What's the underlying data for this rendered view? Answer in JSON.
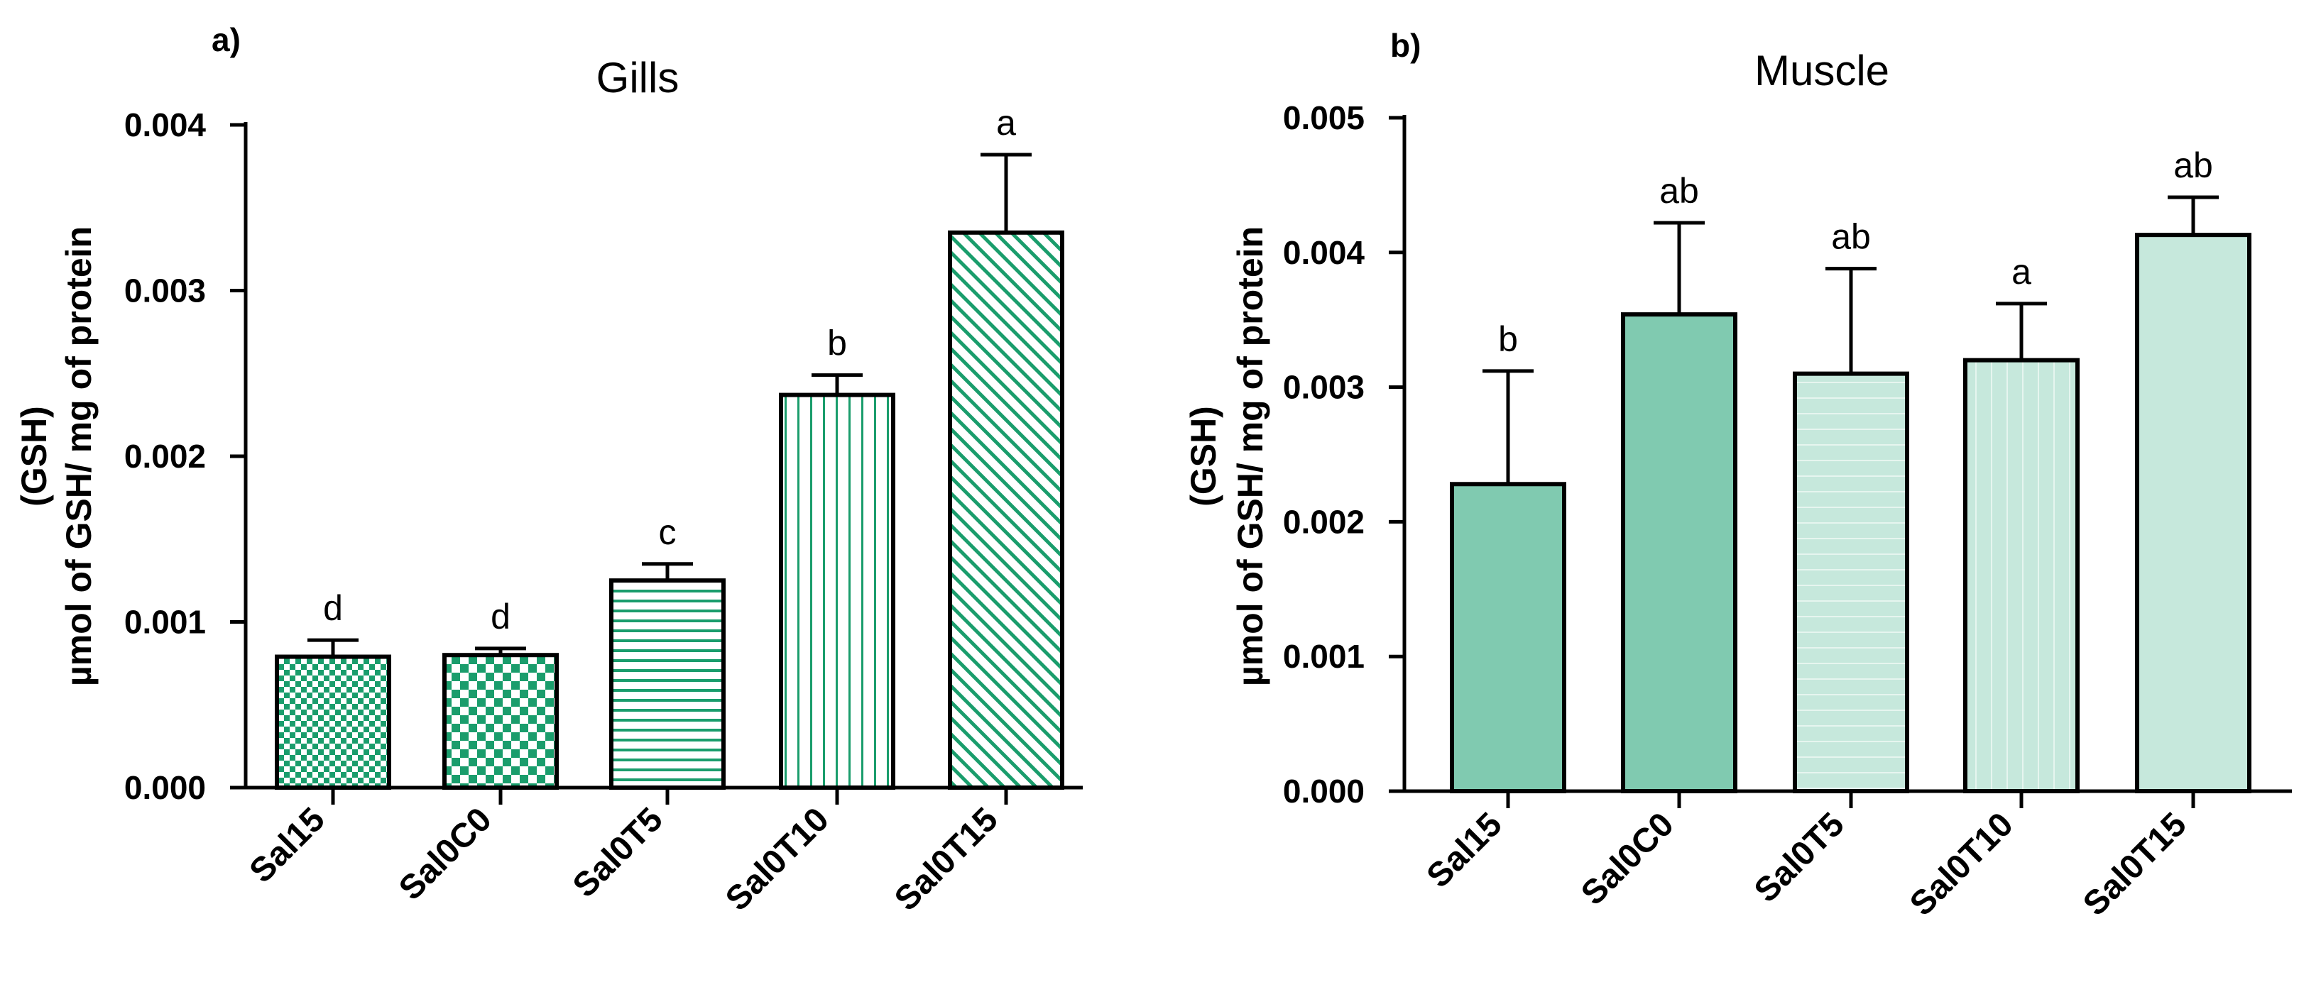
{
  "chart_data": [
    {
      "type": "bar",
      "panel_label": "a)",
      "title": "Gills",
      "ylabel_lines": [
        "(GSH)",
        "µmol of GSH/ mg of protein"
      ],
      "xlabel": "",
      "ylim": [
        0,
        0.004
      ],
      "yticks": [
        "0.000",
        "0.001",
        "0.002",
        "0.003",
        "0.004"
      ],
      "categories": [
        "Sal15",
        "Sal0C0",
        "Sal0T5",
        "Sal0T10",
        "Sal0T15"
      ],
      "values": [
        0.00079,
        0.0008,
        0.00125,
        0.00237,
        0.00335
      ],
      "errors": [
        0.0001,
        4e-05,
        0.0001,
        0.00012,
        0.00047
      ],
      "sig_letters": [
        "d",
        "d",
        "c",
        "b",
        "a"
      ],
      "patterns": [
        "checker-fine",
        "checker-coarse",
        "hlines",
        "vlines",
        "diagonal"
      ],
      "colors": {
        "pattern": "#1a9d6c",
        "fill": "#ffffff"
      }
    },
    {
      "type": "bar",
      "panel_label": "b)",
      "title": "Muscle",
      "ylabel_lines": [
        "(GSH)",
        "µmol of GSH/ mg of protein"
      ],
      "xlabel": "",
      "ylim": [
        0,
        0.005
      ],
      "yticks": [
        "0.000",
        "0.001",
        "0.002",
        "0.003",
        "0.004",
        "0.005"
      ],
      "categories": [
        "Sal15",
        "Sal0C0",
        "Sal0T5",
        "Sal0T10",
        "Sal0T15"
      ],
      "values": [
        0.00228,
        0.00354,
        0.0031,
        0.0032,
        0.00413
      ],
      "errors": [
        0.00084,
        0.00068,
        0.00078,
        0.00042,
        0.00028
      ],
      "sig_letters": [
        "b",
        "ab",
        "ab",
        "a",
        "ab"
      ],
      "patterns": [
        "solid",
        "solid",
        "hlines-faint",
        "vlines-faint",
        "solid"
      ],
      "colors": {
        "fills": [
          "#80cab0",
          "#80cab0",
          "#c6e8dc",
          "#c6e8dc",
          "#c6e8dc"
        ],
        "faint_line": "#e6f5ef"
      }
    }
  ]
}
